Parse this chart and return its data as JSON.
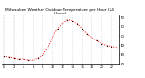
{
  "title": "Milwaukee Weather Outdoor Temperature per Hour (24 Hours)",
  "hours": [
    0,
    1,
    2,
    3,
    4,
    5,
    6,
    7,
    8,
    9,
    10,
    11,
    12,
    13,
    14,
    15,
    16,
    17,
    18,
    19,
    20,
    21,
    22,
    23
  ],
  "temps": [
    28,
    27,
    26,
    25,
    25,
    24,
    24,
    26,
    30,
    38,
    50,
    58,
    64,
    68,
    67,
    63,
    58,
    52,
    48,
    45,
    42,
    40,
    39,
    38
  ],
  "line_color": "#ff0000",
  "marker_color": "#000000",
  "bg_color": "#ffffff",
  "grid_color": "#888888",
  "ylim_min": 20,
  "ylim_max": 72,
  "title_fontsize": 3.2,
  "tick_fontsize": 2.8,
  "ytick_labels": [
    "70",
    "60",
    "50",
    "40",
    "30",
    "20"
  ],
  "ytick_values": [
    70,
    60,
    50,
    40,
    30,
    20
  ],
  "xtick_step": 2
}
